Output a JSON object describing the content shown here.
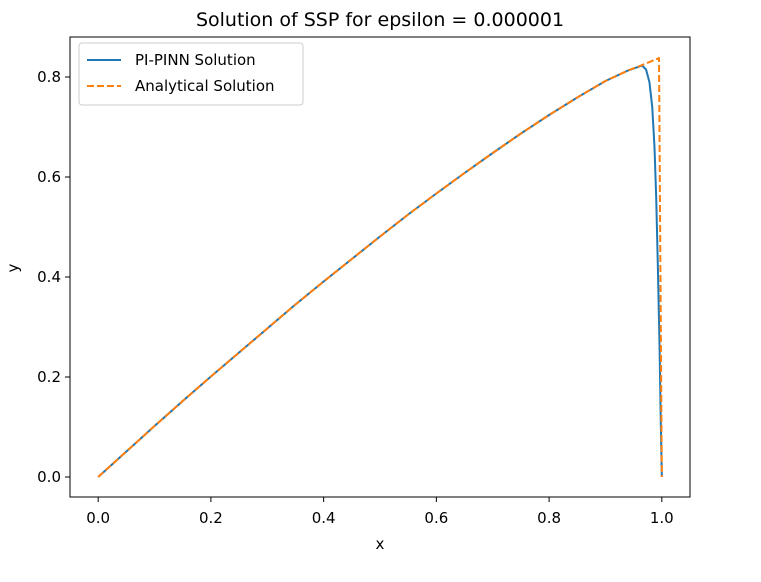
{
  "chart_data": {
    "type": "line",
    "title": "Solution of SSP for epsilon = 0.000001",
    "xlabel": "x",
    "ylabel": "y",
    "xlim": [
      -0.05,
      1.05
    ],
    "ylim": [
      -0.04,
      0.88
    ],
    "xticks": [
      0.0,
      0.2,
      0.4,
      0.6,
      0.8,
      1.0
    ],
    "xtick_labels": [
      "0.0",
      "0.2",
      "0.4",
      "0.6",
      "0.8",
      "1.0"
    ],
    "yticks": [
      0.0,
      0.2,
      0.4,
      0.6,
      0.8
    ],
    "ytick_labels": [
      "0.0",
      "0.2",
      "0.4",
      "0.6",
      "0.8"
    ],
    "grid": false,
    "legend_position": "top-left",
    "series": [
      {
        "name": "PI-PINN Solution",
        "color": "#1f77b4",
        "style": "solid",
        "x": [
          0.0,
          0.05,
          0.1,
          0.15,
          0.2,
          0.25,
          0.3,
          0.35,
          0.4,
          0.45,
          0.5,
          0.55,
          0.6,
          0.65,
          0.7,
          0.75,
          0.8,
          0.85,
          0.9,
          0.94,
          0.965,
          0.972,
          0.978,
          0.983,
          0.987,
          0.99,
          0.993,
          0.996,
          0.998,
          1.0
        ],
        "y": [
          0.0,
          0.051,
          0.102,
          0.152,
          0.201,
          0.249,
          0.297,
          0.345,
          0.391,
          0.436,
          0.481,
          0.525,
          0.567,
          0.608,
          0.648,
          0.687,
          0.724,
          0.759,
          0.792,
          0.813,
          0.823,
          0.815,
          0.79,
          0.74,
          0.66,
          0.56,
          0.42,
          0.26,
          0.12,
          0.0
        ]
      },
      {
        "name": "Analytical Solution",
        "color": "#ff7f0e",
        "style": "dashed",
        "x": [
          0.0,
          0.05,
          0.1,
          0.15,
          0.2,
          0.25,
          0.3,
          0.35,
          0.4,
          0.45,
          0.5,
          0.55,
          0.6,
          0.65,
          0.7,
          0.75,
          0.8,
          0.85,
          0.9,
          0.94,
          0.97,
          0.995,
          0.995,
          1.0
        ],
        "y": [
          0.0,
          0.051,
          0.102,
          0.152,
          0.201,
          0.249,
          0.297,
          0.345,
          0.391,
          0.436,
          0.481,
          0.525,
          0.567,
          0.608,
          0.648,
          0.687,
          0.724,
          0.759,
          0.792,
          0.813,
          0.826,
          0.838,
          0.838,
          0.0
        ]
      }
    ]
  }
}
